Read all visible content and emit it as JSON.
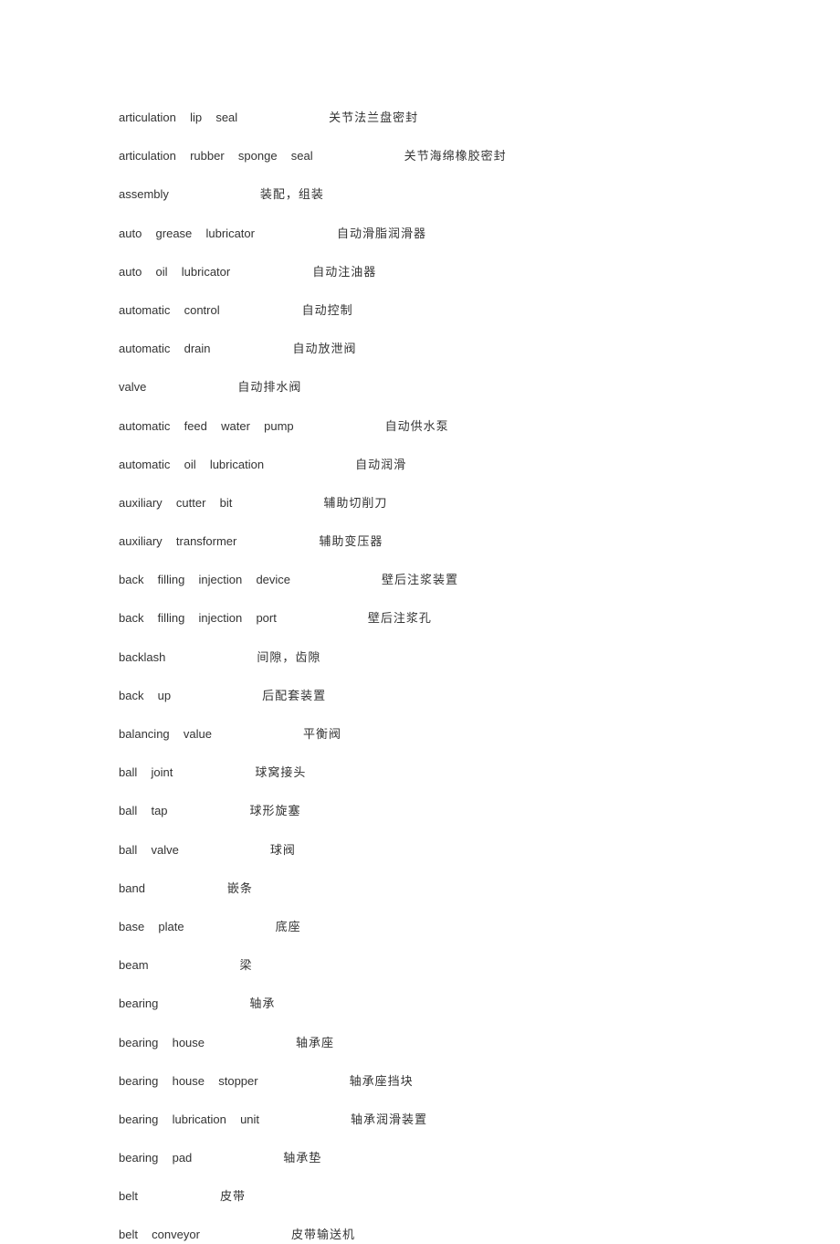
{
  "entries": [
    {
      "term": "articulation  lip  seal",
      "gap": 100,
      "definition": "关节法兰盘密封"
    },
    {
      "term": "articulation  rubber  sponge  seal",
      "gap": 100,
      "definition": "关节海绵橡胶密封"
    },
    {
      "term": "assembly",
      "gap": 100,
      "definition": "装配，组装"
    },
    {
      "term": "auto  grease  lubricator",
      "gap": 90,
      "definition": "自动滑脂润滑器"
    },
    {
      "term": "auto  oil  lubricator",
      "gap": 90,
      "definition": "自动注油器"
    },
    {
      "term": "automatic  control",
      "gap": 90,
      "definition": "自动控制"
    },
    {
      "term": "automatic  drain",
      "gap": 90,
      "definition": "自动放泄阀"
    },
    {
      "term": "valve",
      "gap": 100,
      "definition": "自动排水阀"
    },
    {
      "term": "automatic  feed  water  pump",
      "gap": 100,
      "definition": "自动供水泵"
    },
    {
      "term": "automatic  oil  lubrication",
      "gap": 100,
      "definition": "自动润滑"
    },
    {
      "term": "auxiliary  cutter  bit",
      "gap": 100,
      "definition": "辅助切削刀"
    },
    {
      "term": "auxiliary  transformer",
      "gap": 90,
      "definition": "辅助变压器"
    },
    {
      "term": "back  filling  injection  device",
      "gap": 100,
      "definition": "壁后注浆装置"
    },
    {
      "term": "back  filling  injection  port",
      "gap": 100,
      "definition": "壁后注浆孔"
    },
    {
      "term": "backlash",
      "gap": 100,
      "definition": "间隙，齿隙"
    },
    {
      "term": "back  up",
      "gap": 100,
      "definition": "后配套装置"
    },
    {
      "term": "balancing  value",
      "gap": 100,
      "definition": "平衡阀"
    },
    {
      "term": "ball  joint",
      "gap": 90,
      "definition": "球窝接头"
    },
    {
      "term": "ball  tap",
      "gap": 90,
      "definition": "球形旋塞"
    },
    {
      "term": "ball  valve",
      "gap": 100,
      "definition": "球阀"
    },
    {
      "term": "band",
      "gap": 90,
      "definition": "嵌条"
    },
    {
      "term": "base  plate",
      "gap": 100,
      "definition": "底座"
    },
    {
      "term": "beam",
      "gap": 100,
      "definition": "梁"
    },
    {
      "term": "bearing",
      "gap": 100,
      "definition": "轴承"
    },
    {
      "term": "bearing  house",
      "gap": 100,
      "definition": "轴承座"
    },
    {
      "term": "bearing  house  stopper",
      "gap": 100,
      "definition": "轴承座挡块"
    },
    {
      "term": "bearing  lubrication  unit",
      "gap": 100,
      "definition": "轴承润滑装置"
    },
    {
      "term": "bearing  pad",
      "gap": 100,
      "definition": "轴承垫"
    },
    {
      "term": "belt",
      "gap": 90,
      "definition": "皮带"
    },
    {
      "term": "belt  conveyor",
      "gap": 100,
      "definition": "皮带输送机"
    }
  ],
  "style": {
    "background_color": "#ffffff",
    "text_color": "#333333",
    "font_size": 13,
    "line_spacing": 24
  }
}
